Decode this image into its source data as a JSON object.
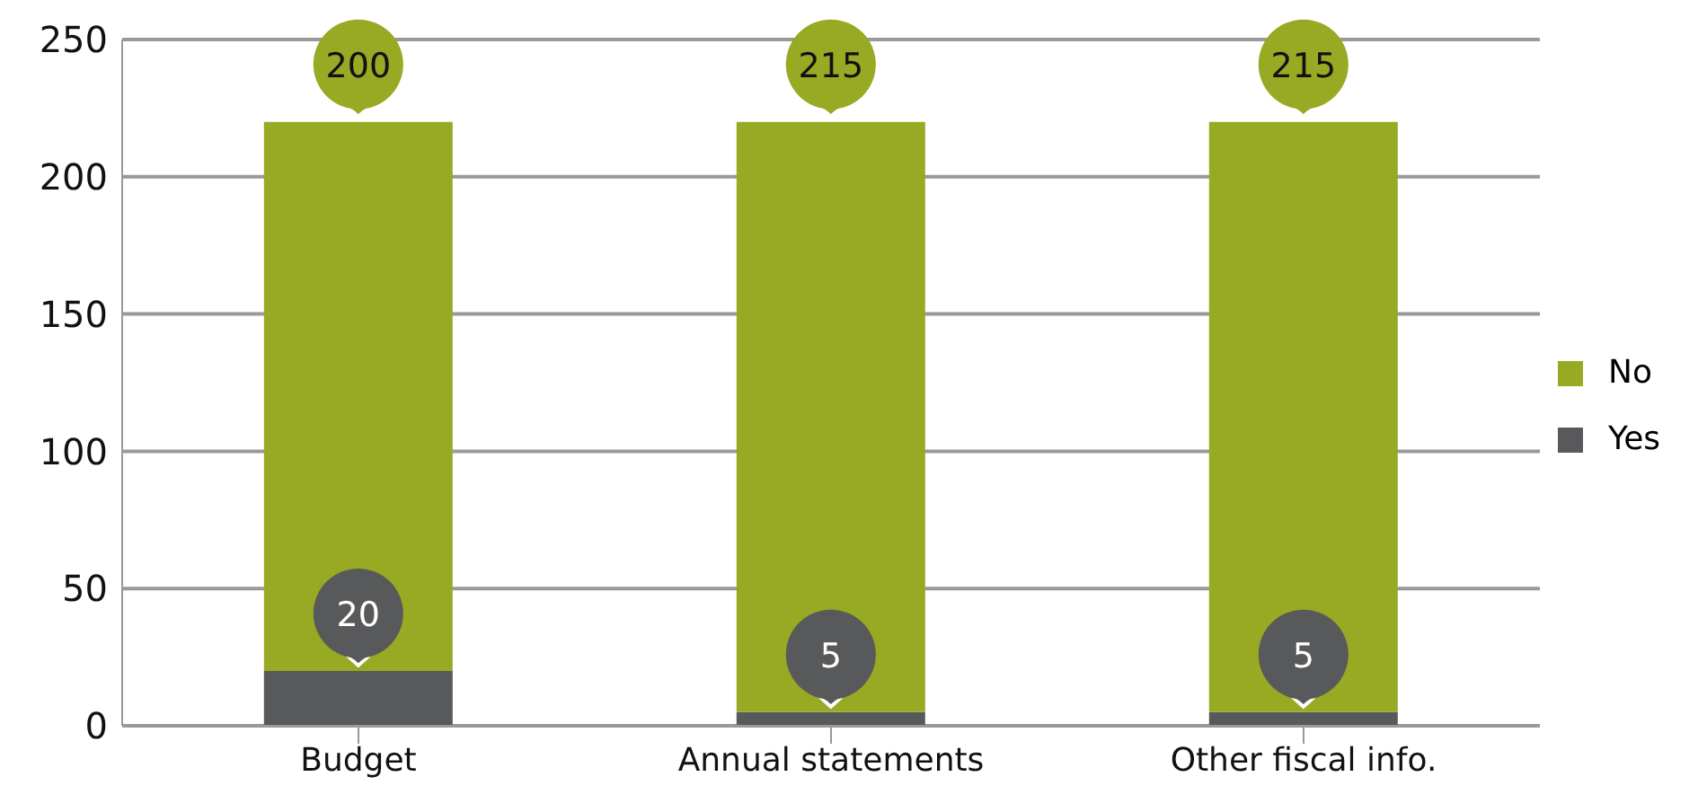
{
  "chart_data": {
    "type": "bar",
    "stacked": true,
    "categories": [
      "Budget",
      "Annual statements",
      "Other fiscal info."
    ],
    "series": [
      {
        "name": "Yes",
        "color": "#58595b",
        "values": [
          20,
          5,
          5
        ]
      },
      {
        "name": "No",
        "color": "#98a923",
        "values": [
          200,
          215,
          215
        ]
      }
    ],
    "ylim": [
      0,
      250
    ],
    "yticks": [
      0,
      50,
      100,
      150,
      200,
      250
    ],
    "grid": "y",
    "legend": "right",
    "data_labels": true
  }
}
